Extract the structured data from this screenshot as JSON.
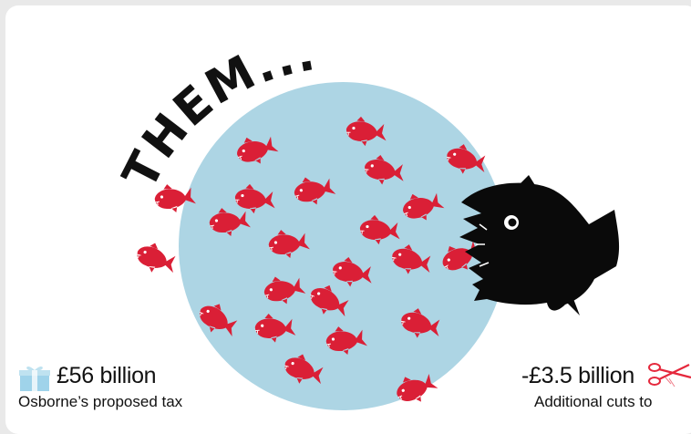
{
  "headline": "THEM...",
  "colors": {
    "pool": "#add5e4",
    "small_fish": "#da1f36",
    "big_fish": "#0a0a0a",
    "gift": "#9fd3ea",
    "scissors": "#e5283c"
  },
  "stats": {
    "left": {
      "icon": "gift-icon",
      "amount": "£56 billion",
      "description": "Osborne’s proposed tax"
    },
    "right": {
      "icon": "scissors-icon",
      "amount": "-£3.5 billion",
      "description": "Additional cuts to"
    }
  }
}
